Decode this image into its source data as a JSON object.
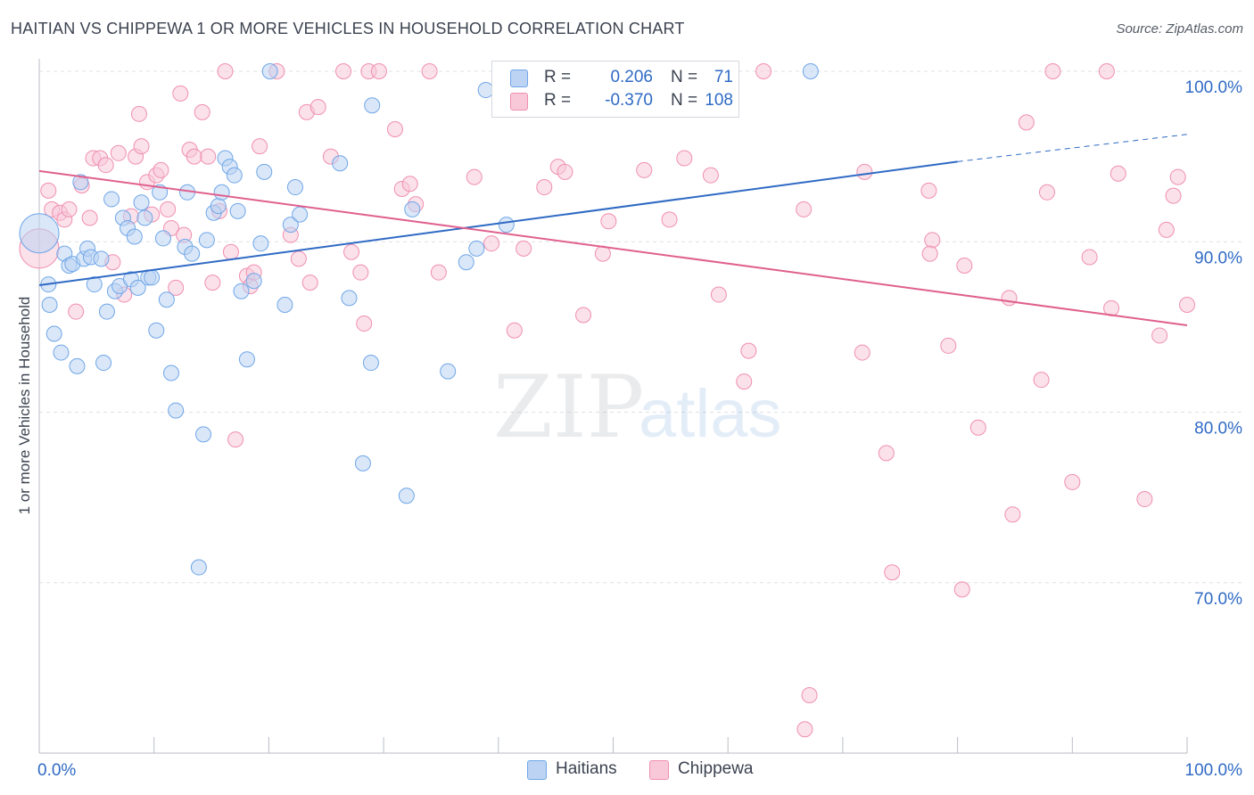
{
  "title": "HAITIAN VS CHIPPEWA 1 OR MORE VEHICLES IN HOUSEHOLD CORRELATION CHART",
  "source": "Source: ZipAtlas.com",
  "watermark": {
    "part1": "ZIP",
    "part2": "atlas"
  },
  "legend": {
    "r_label": "R =",
    "n_label": "N =",
    "rows": [
      {
        "name": "Haitians",
        "r": "0.206",
        "n": "71",
        "color": "#6fa6e8"
      },
      {
        "name": "Chippewa",
        "r": "-0.370",
        "n": "108",
        "color": "#f08fb0"
      }
    ]
  },
  "colors": {
    "haitians_fill": "#bcd3f3",
    "haitians_stroke": "#6fa6e8",
    "haitians_line": "#2f6ac4",
    "chippewa_fill": "#f8c8d8",
    "chippewa_stroke": "#f08fb0",
    "chippewa_line": "#e0608e",
    "tick_label": "#2f6ac4"
  },
  "chart_data": {
    "type": "scatter",
    "title": "HAITIAN VS CHIPPEWA 1 OR MORE VEHICLES IN HOUSEHOLD CORRELATION CHART",
    "xlabel": "",
    "ylabel": "1 or more Vehicles in Household",
    "xlim": [
      0,
      100
    ],
    "ylim": [
      60,
      100
    ],
    "x_tick_labels": [
      "0.0%",
      "100.0%"
    ],
    "y_ticks": [
      70,
      80,
      90,
      100
    ],
    "y_tick_labels": [
      "70.0%",
      "80.0%",
      "90.0%",
      "100.0%"
    ],
    "grid": true,
    "legend_position": "top-center",
    "series": [
      {
        "name": "Haitians",
        "r": 0.206,
        "n": 71,
        "trend": {
          "x0": 0,
          "y0": 87.45,
          "x1": 80,
          "y1": 94.7,
          "dashed_to_x": 100,
          "dashed_to_y": 96.3
        },
        "points": [
          [
            0.0,
            90.5
          ],
          [
            0.8,
            87.5
          ],
          [
            0.9,
            86.3
          ],
          [
            1.3,
            84.6
          ],
          [
            1.9,
            83.5
          ],
          [
            2.2,
            89.3
          ],
          [
            2.6,
            88.6
          ],
          [
            2.9,
            88.7
          ],
          [
            3.3,
            82.7
          ],
          [
            3.6,
            93.5
          ],
          [
            3.9,
            89.0
          ],
          [
            4.2,
            89.6
          ],
          [
            4.5,
            89.1
          ],
          [
            4.8,
            87.5
          ],
          [
            5.4,
            89.0
          ],
          [
            5.6,
            82.9
          ],
          [
            5.9,
            85.9
          ],
          [
            6.3,
            92.5
          ],
          [
            6.6,
            87.1
          ],
          [
            7.0,
            87.4
          ],
          [
            7.3,
            91.4
          ],
          [
            7.7,
            90.8
          ],
          [
            8.0,
            87.8
          ],
          [
            8.3,
            90.3
          ],
          [
            8.6,
            87.3
          ],
          [
            8.9,
            92.3
          ],
          [
            9.2,
            91.4
          ],
          [
            9.5,
            87.9
          ],
          [
            9.8,
            87.9
          ],
          [
            10.2,
            84.8
          ],
          [
            10.5,
            92.9
          ],
          [
            10.8,
            90.2
          ],
          [
            11.1,
            86.6
          ],
          [
            11.5,
            82.3
          ],
          [
            11.9,
            80.1
          ],
          [
            12.7,
            89.7
          ],
          [
            12.9,
            92.9
          ],
          [
            13.3,
            89.3
          ],
          [
            13.9,
            70.9
          ],
          [
            14.3,
            78.7
          ],
          [
            14.6,
            90.1
          ],
          [
            15.2,
            91.7
          ],
          [
            15.6,
            92.1
          ],
          [
            15.9,
            92.9
          ],
          [
            16.2,
            94.9
          ],
          [
            16.6,
            94.4
          ],
          [
            17.0,
            93.9
          ],
          [
            17.3,
            91.8
          ],
          [
            17.6,
            87.1
          ],
          [
            18.1,
            83.1
          ],
          [
            18.7,
            87.7
          ],
          [
            19.3,
            89.9
          ],
          [
            19.6,
            94.1
          ],
          [
            20.1,
            100.0
          ],
          [
            21.4,
            86.3
          ],
          [
            21.9,
            91.0
          ],
          [
            22.3,
            93.2
          ],
          [
            22.7,
            91.6
          ],
          [
            26.2,
            94.6
          ],
          [
            27.0,
            86.7
          ],
          [
            28.2,
            77.0
          ],
          [
            28.9,
            82.9
          ],
          [
            29.0,
            98.0
          ],
          [
            32.0,
            75.1
          ],
          [
            32.5,
            91.9
          ],
          [
            35.6,
            82.4
          ],
          [
            37.2,
            88.8
          ],
          [
            38.1,
            89.6
          ],
          [
            38.9,
            98.9
          ],
          [
            40.7,
            91.0
          ],
          [
            67.2,
            100.0
          ]
        ]
      },
      {
        "name": "Chippewa",
        "r": -0.37,
        "n": 108,
        "trend": {
          "x0": 0,
          "y0": 94.15,
          "x1": 100,
          "y1": 85.1
        },
        "points": [
          [
            0.0,
            89.6
          ],
          [
            0.8,
            93.0
          ],
          [
            1.1,
            91.9
          ],
          [
            1.8,
            91.7
          ],
          [
            2.2,
            91.3
          ],
          [
            2.6,
            91.9
          ],
          [
            3.2,
            85.9
          ],
          [
            3.7,
            93.3
          ],
          [
            4.4,
            91.4
          ],
          [
            4.7,
            94.9
          ],
          [
            5.3,
            94.9
          ],
          [
            5.8,
            94.5
          ],
          [
            6.4,
            88.8
          ],
          [
            6.9,
            95.2
          ],
          [
            7.4,
            86.9
          ],
          [
            8.0,
            91.5
          ],
          [
            8.4,
            95.0
          ],
          [
            8.7,
            97.5
          ],
          [
            8.9,
            95.6
          ],
          [
            9.4,
            93.5
          ],
          [
            9.8,
            91.6
          ],
          [
            10.2,
            93.9
          ],
          [
            10.6,
            94.2
          ],
          [
            11.2,
            91.9
          ],
          [
            11.5,
            90.8
          ],
          [
            11.9,
            87.3
          ],
          [
            12.3,
            98.7
          ],
          [
            12.6,
            90.4
          ],
          [
            13.1,
            95.4
          ],
          [
            13.5,
            95.0
          ],
          [
            14.2,
            97.6
          ],
          [
            14.7,
            95.0
          ],
          [
            15.1,
            87.6
          ],
          [
            15.7,
            91.8
          ],
          [
            16.2,
            100.0
          ],
          [
            16.7,
            89.4
          ],
          [
            17.1,
            78.4
          ],
          [
            18.1,
            88.0
          ],
          [
            18.4,
            87.4
          ],
          [
            18.7,
            88.2
          ],
          [
            19.2,
            95.6
          ],
          [
            20.7,
            100.0
          ],
          [
            21.9,
            90.4
          ],
          [
            22.6,
            89.0
          ],
          [
            23.3,
            97.6
          ],
          [
            23.6,
            87.6
          ],
          [
            24.3,
            97.9
          ],
          [
            25.4,
            95.0
          ],
          [
            26.5,
            100.0
          ],
          [
            27.2,
            89.4
          ],
          [
            28.0,
            88.2
          ],
          [
            28.3,
            85.2
          ],
          [
            28.7,
            100.0
          ],
          [
            29.6,
            100.0
          ],
          [
            31.0,
            96.6
          ],
          [
            31.6,
            93.1
          ],
          [
            32.3,
            93.4
          ],
          [
            32.8,
            92.2
          ],
          [
            34.0,
            100.0
          ],
          [
            34.8,
            88.2
          ],
          [
            37.9,
            93.8
          ],
          [
            39.4,
            89.9
          ],
          [
            41.4,
            84.8
          ],
          [
            42.2,
            89.6
          ],
          [
            44.0,
            93.2
          ],
          [
            45.2,
            94.4
          ],
          [
            45.8,
            94.1
          ],
          [
            47.4,
            85.7
          ],
          [
            49.1,
            89.3
          ],
          [
            49.6,
            91.2
          ],
          [
            52.7,
            94.2
          ],
          [
            54.0,
            100.0
          ],
          [
            54.9,
            91.3
          ],
          [
            56.2,
            94.9
          ],
          [
            58.5,
            93.9
          ],
          [
            59.2,
            86.9
          ],
          [
            61.4,
            81.8
          ],
          [
            61.8,
            83.6
          ],
          [
            63.1,
            100.0
          ],
          [
            66.6,
            91.9
          ],
          [
            67.1,
            63.4
          ],
          [
            66.7,
            61.4
          ],
          [
            71.7,
            83.5
          ],
          [
            71.9,
            94.1
          ],
          [
            73.8,
            77.6
          ],
          [
            74.3,
            70.6
          ],
          [
            77.5,
            93.0
          ],
          [
            77.8,
            90.1
          ],
          [
            77.6,
            89.3
          ],
          [
            79.2,
            83.9
          ],
          [
            80.4,
            69.6
          ],
          [
            80.6,
            88.6
          ],
          [
            81.8,
            79.1
          ],
          [
            84.5,
            86.7
          ],
          [
            84.8,
            74.0
          ],
          [
            86.0,
            97.0
          ],
          [
            87.3,
            81.9
          ],
          [
            87.8,
            92.9
          ],
          [
            88.3,
            100.0
          ],
          [
            90.0,
            75.9
          ],
          [
            91.5,
            89.1
          ],
          [
            93.0,
            100.0
          ],
          [
            93.4,
            86.1
          ],
          [
            94.0,
            94.0
          ],
          [
            96.3,
            74.9
          ],
          [
            97.6,
            84.5
          ],
          [
            98.2,
            90.7
          ],
          [
            98.8,
            92.7
          ],
          [
            99.2,
            93.8
          ],
          [
            100.0,
            86.3
          ]
        ]
      }
    ]
  }
}
